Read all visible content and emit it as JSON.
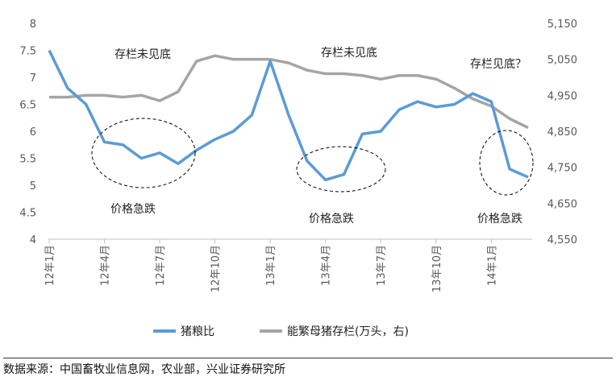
{
  "chart_data": {
    "type": "line",
    "x": [
      "12年1月",
      "12年2月",
      "12年3月",
      "12年4月",
      "12年5月",
      "12年6月",
      "12年7月",
      "12年8月",
      "12年9月",
      "12年10月",
      "12年11月",
      "12年12月",
      "13年1月",
      "13年2月",
      "13年3月",
      "13年4月",
      "13年5月",
      "13年6月",
      "13年7月",
      "13年8月",
      "13年9月",
      "13年10月",
      "13年11月",
      "13年12月",
      "14年1月",
      "14年2月",
      "14年3月"
    ],
    "x_ticks": [
      "12年1月",
      "12年4月",
      "12年7月",
      "12年10月",
      "13年1月",
      "13年4月",
      "13年7月",
      "13年10月",
      "14年1月"
    ],
    "series": [
      {
        "name": "猪粮比",
        "axis": "left",
        "color": "#5B9BD5",
        "values": [
          7.5,
          6.8,
          6.5,
          5.8,
          5.75,
          5.5,
          5.6,
          5.4,
          5.65,
          5.85,
          6.0,
          6.3,
          7.3,
          6.3,
          5.45,
          5.1,
          5.2,
          5.95,
          6.0,
          6.4,
          6.55,
          6.45,
          6.5,
          6.7,
          6.55,
          5.3,
          5.15
        ]
      },
      {
        "name": "能繁母猪存栏(万头，右)",
        "axis": "right",
        "color": "#A5A5A5",
        "values": [
          4945,
          4945,
          4950,
          4950,
          4945,
          4950,
          4935,
          4960,
          5045,
          5060,
          5050,
          5050,
          5050,
          5040,
          5020,
          5010,
          5010,
          5005,
          4995,
          5005,
          5005,
          4995,
          4970,
          4940,
          4920,
          4885,
          4860
        ]
      }
    ],
    "y_left": {
      "ticks": [
        "4",
        "4.5",
        "5",
        "5.5",
        "6",
        "6.5",
        "7",
        "7.5",
        "8"
      ],
      "min": 4,
      "max": 8
    },
    "y_right": {
      "ticks": [
        "4,550",
        "4,650",
        "4,750",
        "4,850",
        "4,950",
        "5,050",
        "5,150"
      ],
      "min": 4550,
      "max": 5150
    },
    "annotations": {
      "top": [
        "存栏未见底",
        "存栏未见底",
        "存栏见底？"
      ],
      "bottom": [
        "价格急跌",
        "价格急跌",
        "价格急跌"
      ]
    },
    "legend_position": "bottom",
    "grid": false
  },
  "source": "数据来源：中国畜牧业信息网，农业部，兴业证券研究所"
}
